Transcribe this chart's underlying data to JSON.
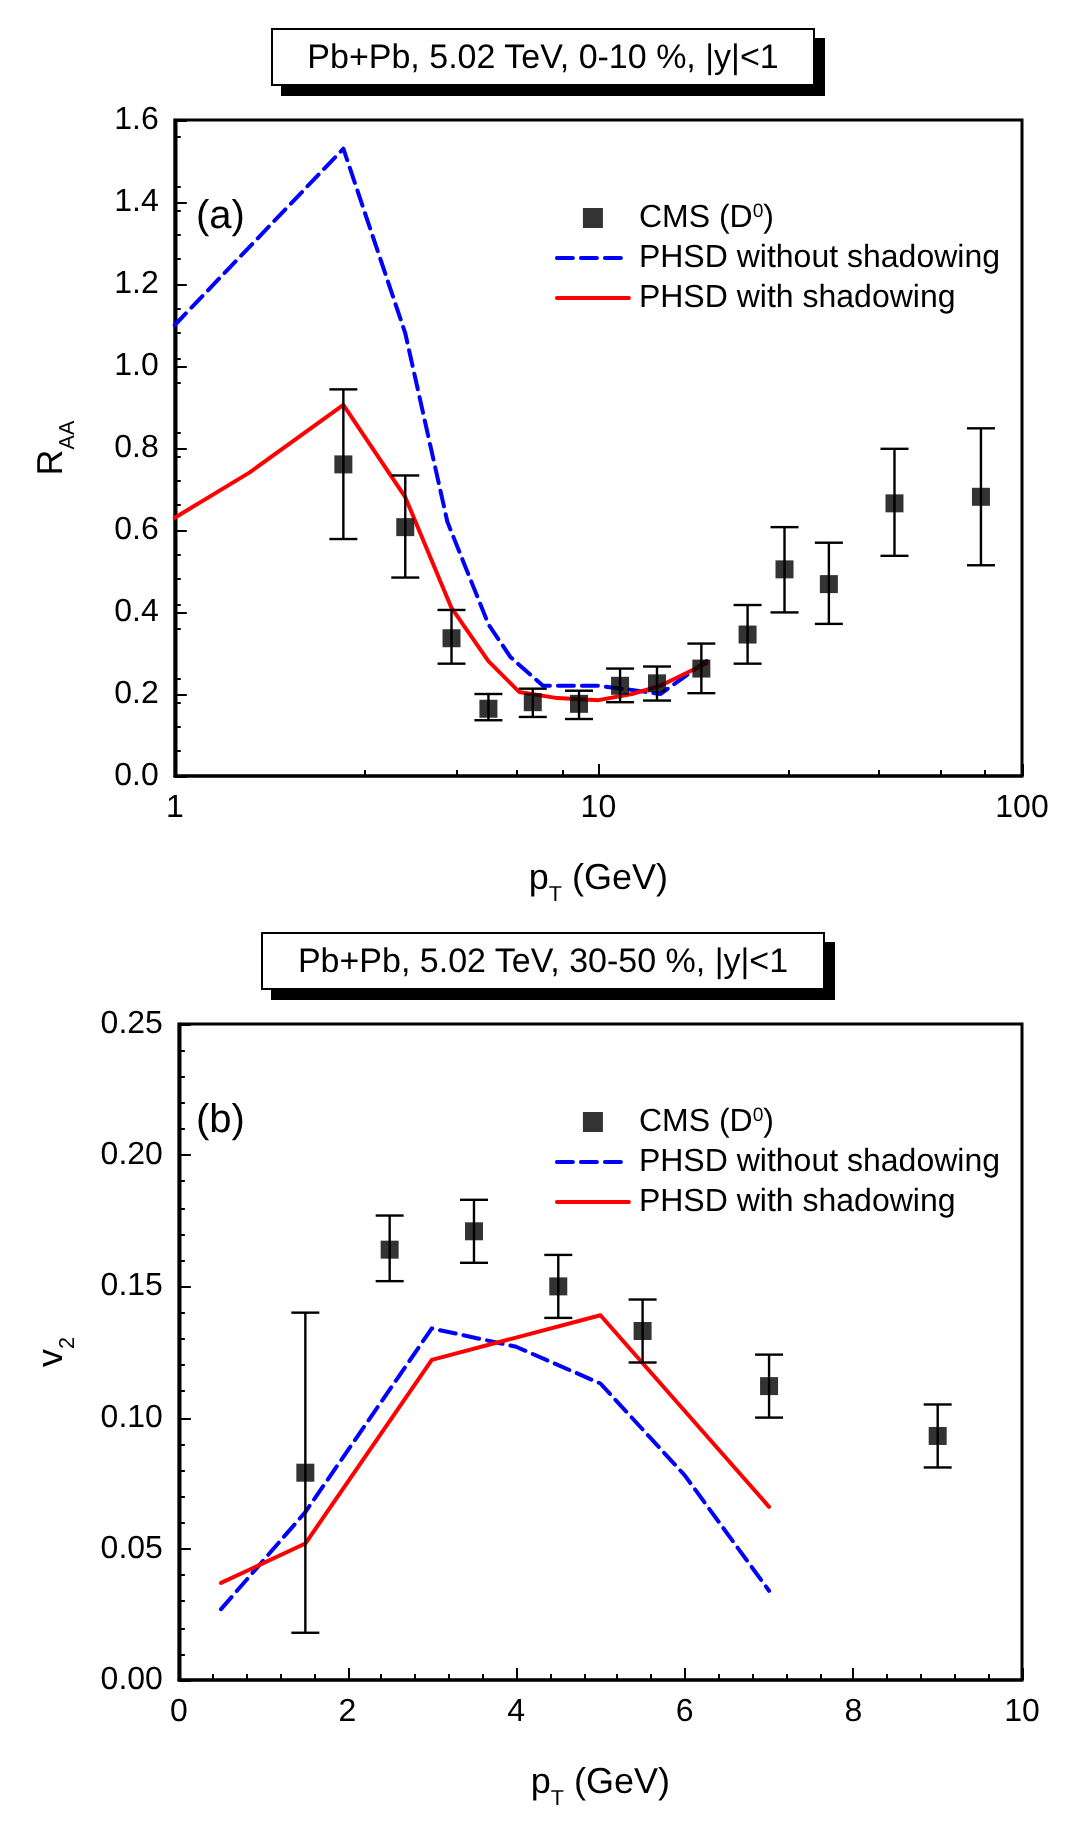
{
  "chart_data": [
    {
      "type": "scatter",
      "title": "Pb+Pb, 5.02 TeV, 0-10 %, |y|<1",
      "xlabel": "p$_{T}$ (GeV)",
      "ylabel": "R$_{AA}$",
      "annotations": [
        "(a)"
      ],
      "log": "x",
      "xlim": [
        1,
        100
      ],
      "xticks": [
        1,
        10,
        100
      ],
      "ylim": [
        0,
        1.6
      ],
      "yticks": [
        {
          "value": 0,
          "label": "0.0"
        },
        {
          "value": 0.2,
          "label": "0.2"
        },
        {
          "value": 0.4,
          "label": "0.4"
        },
        {
          "value": 0.6,
          "label": "0.6"
        },
        {
          "value": 0.8,
          "label": "0.8"
        },
        {
          "value": 1.0,
          "label": "1.0"
        },
        {
          "value": 1.2,
          "label": "1.2"
        },
        {
          "value": 1.4,
          "label": "1.4"
        },
        {
          "value": 1.6,
          "label": "1.6"
        }
      ],
      "grid": false,
      "legend": "top right",
      "series": [
        {
          "name": "CMS (D$^{0}$)",
          "type": "scatter",
          "marker": "square",
          "color": "#000000",
          "x": [
            2.5,
            3.5,
            4.5,
            5.5,
            7,
            9,
            11.25,
            13.75,
            17.5,
            22.5,
            27.5,
            35,
            50,
            80
          ],
          "values": [
            0.76,
            0.607,
            0.336,
            0.164,
            0.18,
            0.176,
            0.22,
            0.226,
            0.262,
            0.345,
            0.504,
            0.468,
            0.665,
            0.681
          ],
          "errors": [
            [
              0.578,
              0.943
            ],
            [
              0.484,
              0.733
            ],
            [
              0.274,
              0.405
            ],
            [
              0.136,
              0.2
            ],
            [
              0.144,
              0.213
            ],
            [
              0.139,
              0.208
            ],
            [
              0.18,
              0.262
            ],
            [
              0.184,
              0.267
            ],
            [
              0.202,
              0.323
            ],
            [
              0.274,
              0.417
            ],
            [
              0.399,
              0.607
            ],
            [
              0.371,
              0.569
            ],
            [
              0.537,
              0.798
            ],
            [
              0.514,
              0.848
            ]
          ]
        },
        {
          "name": "PHSD without shadowing",
          "type": "line",
          "marker": "none",
          "line_style": "dashed",
          "color": "#0000ff",
          "x": [
            1,
            2.5,
            3.5,
            4.4,
            5.5,
            6.2,
            7.4,
            10,
            12,
            14,
            18
          ],
          "values": [
            1.1,
            1.53,
            1.08,
            0.62,
            0.37,
            0.29,
            0.22,
            0.22,
            0.21,
            0.2,
            0.28
          ]
        },
        {
          "name": "PHSD with shadowing",
          "type": "line",
          "marker": "none",
          "line_style": "solid",
          "color": "#ff0000",
          "x": [
            1,
            1.5,
            2.5,
            3.5,
            4.5,
            5.5,
            6.5,
            8,
            10,
            12,
            14,
            18
          ],
          "values": [
            0.63,
            0.74,
            0.905,
            0.68,
            0.41,
            0.28,
            0.205,
            0.19,
            0.185,
            0.2,
            0.22,
            0.275
          ]
        }
      ]
    },
    {
      "type": "scatter",
      "title": "Pb+Pb, 5.02 TeV, 30-50 %, |y|<1",
      "xlabel": "p$_{T}$ (GeV)",
      "ylabel": "v$_{2}$",
      "annotations": [
        "(b)"
      ],
      "xlim": [
        0,
        10
      ],
      "xticks": [
        0,
        2,
        4,
        6,
        8,
        10
      ],
      "ylim": [
        0,
        0.25
      ],
      "yticks": [
        {
          "value": 0,
          "label": "0.00"
        },
        {
          "value": 0.05,
          "label": "0.05"
        },
        {
          "value": 0.1,
          "label": "0.10"
        },
        {
          "value": 0.15,
          "label": "0.15"
        },
        {
          "value": 0.2,
          "label": "0.20"
        },
        {
          "value": 0.25,
          "label": "0.25"
        }
      ],
      "grid": false,
      "legend": "top right",
      "series": [
        {
          "name": "CMS (D$^{0}$)",
          "type": "scatter",
          "marker": "square",
          "color": "#000000",
          "x": [
            1.5,
            2.5,
            3.5,
            4.5,
            5.5,
            7,
            9
          ],
          "values": [
            0.079,
            0.164,
            0.171,
            0.15,
            0.133,
            0.112,
            0.093
          ],
          "errors": [
            [
              0.018,
              0.14
            ],
            [
              0.152,
              0.177
            ],
            [
              0.159,
              0.183
            ],
            [
              0.138,
              0.162
            ],
            [
              0.121,
              0.145
            ],
            [
              0.1,
              0.124
            ],
            [
              0.081,
              0.105
            ]
          ]
        },
        {
          "name": "PHSD without shadowing",
          "type": "line",
          "marker": "none",
          "line_style": "dashed",
          "color": "#0000ff",
          "x": [
            0.5,
            1.5,
            3,
            4,
            5,
            6,
            7
          ],
          "values": [
            0.027,
            0.064,
            0.134,
            0.127,
            0.113,
            0.078,
            0.034
          ]
        },
        {
          "name": "PHSD with shadowing",
          "type": "line",
          "marker": "none",
          "line_style": "solid",
          "color": "#ff0000",
          "x": [
            0.5,
            1.5,
            3,
            5,
            7
          ],
          "values": [
            0.037,
            0.052,
            0.122,
            0.139,
            0.066
          ]
        }
      ]
    }
  ]
}
